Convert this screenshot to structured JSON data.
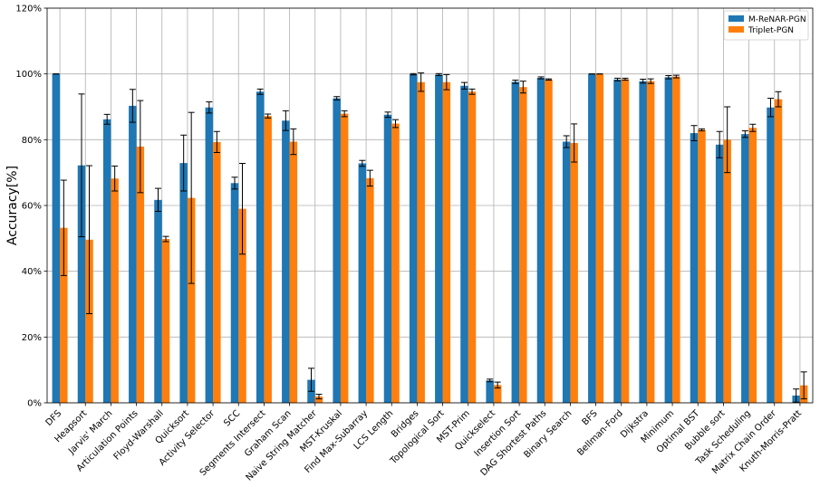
{
  "chart_data": {
    "type": "bar",
    "title": "",
    "xlabel": "",
    "ylabel": "Accuracy[%]",
    "ylim": [
      0,
      120
    ],
    "yticks": [
      0,
      20,
      40,
      60,
      80,
      100,
      120
    ],
    "ytick_labels": [
      "0%",
      "20%",
      "40%",
      "60%",
      "80%",
      "100%",
      "120%"
    ],
    "grid": true,
    "legend_position": "top-right",
    "categories": [
      "DFS",
      "Heapsort",
      "Jarvis' March",
      "Articulation Points",
      "Floyd-Warshall",
      "Quicksort",
      "Activity Selector",
      "SCC",
      "Segments Intersect",
      "Graham Scan",
      "Naive String Matcher",
      "MST-Kruskal",
      "Find Max-Subarray",
      "LCS Length",
      "Bridges",
      "Topological Sort",
      "MST-Prim",
      "Quickselect",
      "Insertion Sort",
      "DAG Shortest Paths",
      "Binary Search",
      "BFS",
      "Bellman-Ford",
      "Dijkstra",
      "Minimum",
      "Optimal BST",
      "Bubble sort",
      "Task Scheduling",
      "Matrix Chain Order",
      "Knuth-Morris-Pratt"
    ],
    "series": [
      {
        "name": "M-ReNAR-PGN",
        "color": "#1f77b4",
        "values": [
          100,
          72.2,
          86.2,
          90.3,
          61.7,
          72.9,
          89.8,
          66.8,
          94.6,
          85.8,
          7.0,
          92.6,
          72.8,
          87.6,
          99.9,
          99.8,
          96.4,
          6.8,
          97.6,
          98.8,
          79.4,
          100,
          98.3,
          97.8,
          99.0,
          82.0,
          78.5,
          81.7,
          89.8,
          2.2
        ],
        "errors": [
          0,
          21.7,
          1.5,
          5.0,
          3.5,
          8.5,
          1.7,
          1.8,
          0.8,
          3.0,
          3.5,
          0.5,
          0.9,
          0.8,
          0.2,
          0.3,
          1.0,
          0.4,
          0.5,
          0.3,
          1.8,
          0.0,
          0.4,
          0.6,
          0.5,
          2.3,
          4.0,
          1.0,
          2.8,
          2.0
        ]
      },
      {
        "name": "Triplet-PGN",
        "color": "#ff7f0e",
        "values": [
          53.2,
          49.6,
          68.2,
          77.9,
          49.8,
          62.3,
          79.3,
          59.0,
          87.2,
          79.4,
          1.9,
          87.9,
          68.3,
          84.9,
          97.5,
          97.5,
          94.6,
          5.4,
          96.0,
          98.3,
          79.0,
          100,
          98.4,
          97.8,
          99.2,
          83.0,
          80.0,
          83.6,
          92.3,
          5.3
        ],
        "errors": [
          14.5,
          22.5,
          3.8,
          14.0,
          0.8,
          26.0,
          3.2,
          13.8,
          0.6,
          3.9,
          0.7,
          0.9,
          2.4,
          1.2,
          2.8,
          2.3,
          0.8,
          0.9,
          1.8,
          0.2,
          5.8,
          0.0,
          0.3,
          0.7,
          0.4,
          0.3,
          10.0,
          1.1,
          2.3,
          4.1
        ]
      }
    ]
  }
}
